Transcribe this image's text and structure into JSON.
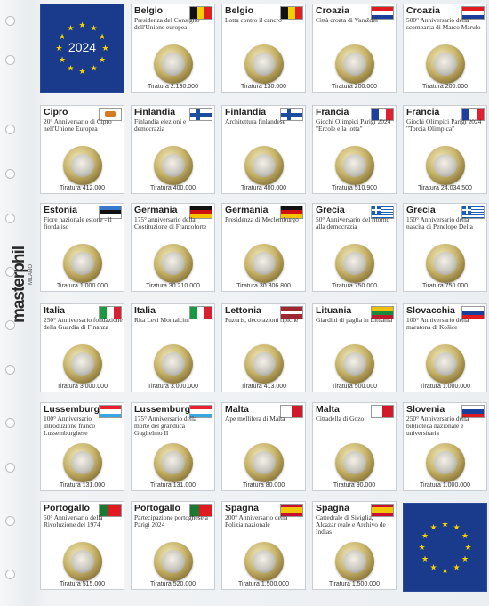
{
  "brand": {
    "name": "masterphil",
    "sub": "MILANO"
  },
  "eu_panel": {
    "year": "2024",
    "star_color": "#f5d000",
    "bg": "#1a3a8c"
  },
  "cells": [
    {
      "country": "Belgio",
      "desc": "Presidenza del Consiglio dell'Unione europea",
      "mintage": "Tiratura 2.130.000",
      "flag": "belgium"
    },
    {
      "country": "Belgio",
      "desc": "Lotta contro il cancro",
      "mintage": "Tiratura 130.000",
      "flag": "belgium"
    },
    {
      "country": "Croazia",
      "desc": "Città croata di Varaždin",
      "mintage": "Tiratura 200.000",
      "flag": "croatia"
    },
    {
      "country": "Croazia",
      "desc": "500° Anniversario della scomparsa di Marco Marulo",
      "mintage": "Tiratura 200.000",
      "flag": "croatia"
    },
    {
      "country": "Cipro",
      "desc": "20° Anniversario di Cipro nell'Unione Europea",
      "mintage": "Tiratura 412.000",
      "flag": "cyprus"
    },
    {
      "country": "Finlandia",
      "desc": "Finlandia elezioni e democrazia",
      "mintage": "Tiratura 400.000",
      "flag": "finland"
    },
    {
      "country": "Finlandia",
      "desc": "Architettura finlandese",
      "mintage": "Tiratura 400.000",
      "flag": "finland"
    },
    {
      "country": "Francia",
      "desc": "Giochi Olimpici Parigi 2024 \"Ercole e la lotta\"",
      "mintage": "Tiratura 510.900",
      "flag": "france"
    },
    {
      "country": "Francia",
      "desc": "Giochi Olimpici Parigi 2024 \"Torcia Olimpica\"",
      "mintage": "Tiratura 24.034.500",
      "flag": "france"
    },
    {
      "country": "Estonia",
      "desc": "Fiore nazionale estone - il fiordaliso",
      "mintage": "Tiratura 1.000.000",
      "flag": "estonia"
    },
    {
      "country": "Germania",
      "desc": "175° anniversario della Costituzione di Francoforte",
      "mintage": "Tiratura 30.210.000",
      "flag": "germany"
    },
    {
      "country": "Germania",
      "desc": "Presidenza di Meclemburgo",
      "mintage": "Tiratura 30.306.800",
      "flag": "germany"
    },
    {
      "country": "Grecia",
      "desc": "50° Anniversario del ritorno alla democrazia",
      "mintage": "Tiratura 750.000",
      "flag": "greece"
    },
    {
      "country": "Grecia",
      "desc": "150° Anniversario della nascita di Penelope Delta",
      "mintage": "Tiratura 750.000",
      "flag": "greece"
    },
    {
      "country": "Italia",
      "desc": "250° Anniversario fondazione della Guardia di Finanza",
      "mintage": "Tiratura 3.000.000",
      "flag": "italy"
    },
    {
      "country": "Italia",
      "desc": "Rita Levi Montalcini",
      "mintage": "Tiratura 3.000.000",
      "flag": "italy"
    },
    {
      "country": "Lettonia",
      "desc": "Puzuris, decorazioni tipiche",
      "mintage": "Tiratura 413.000",
      "flag": "latvia"
    },
    {
      "country": "Lituania",
      "desc": "Giardini di paglia in Lituania",
      "mintage": "Tiratura 500.000",
      "flag": "lithuania"
    },
    {
      "country": "Slovacchia",
      "desc": "100° Anniversario della maratona di Košice",
      "mintage": "Tiratura 1.000.000",
      "flag": "slovakia"
    },
    {
      "country": "Lussemburgo",
      "desc": "100° Anniversario introduzione franco Lussemburghese",
      "mintage": "Tiratura 131.000",
      "flag": "luxembourg"
    },
    {
      "country": "Lussemburgo",
      "desc": "175° Anniversario della morte del granduca Guglielmo II",
      "mintage": "Tiratura 131.000",
      "flag": "luxembourg"
    },
    {
      "country": "Malta",
      "desc": "Ape mellifera di Malta",
      "mintage": "Tiratura 80.000",
      "flag": "malta"
    },
    {
      "country": "Malta",
      "desc": "Cittadella di Gozo",
      "mintage": "Tiratura 90.000",
      "flag": "malta"
    },
    {
      "country": "Slovenia",
      "desc": "250° Anniversario della biblioteca nazionale e universitaria",
      "mintage": "Tiratura 1.000.000",
      "flag": "slovenia"
    },
    {
      "country": "Portogallo",
      "desc": "50° Anniversario della Rivoluzione del 1974",
      "mintage": "Tiratura 515.000",
      "flag": "portugal"
    },
    {
      "country": "Portogallo",
      "desc": "Partecipazione portoghese a Parigi 2024",
      "mintage": "Tiratura 520.000",
      "flag": "portugal"
    },
    {
      "country": "Spagna",
      "desc": "200° Anniversario della Polizia nazionale",
      "mintage": "Tiratura 1.500.000",
      "flag": "spain"
    },
    {
      "country": "Spagna",
      "desc": "Cattedrale di Siviglia, Alcazar reale e Archivo de Indias",
      "mintage": "Tiratura 1.500.000",
      "flag": "spain"
    }
  ]
}
